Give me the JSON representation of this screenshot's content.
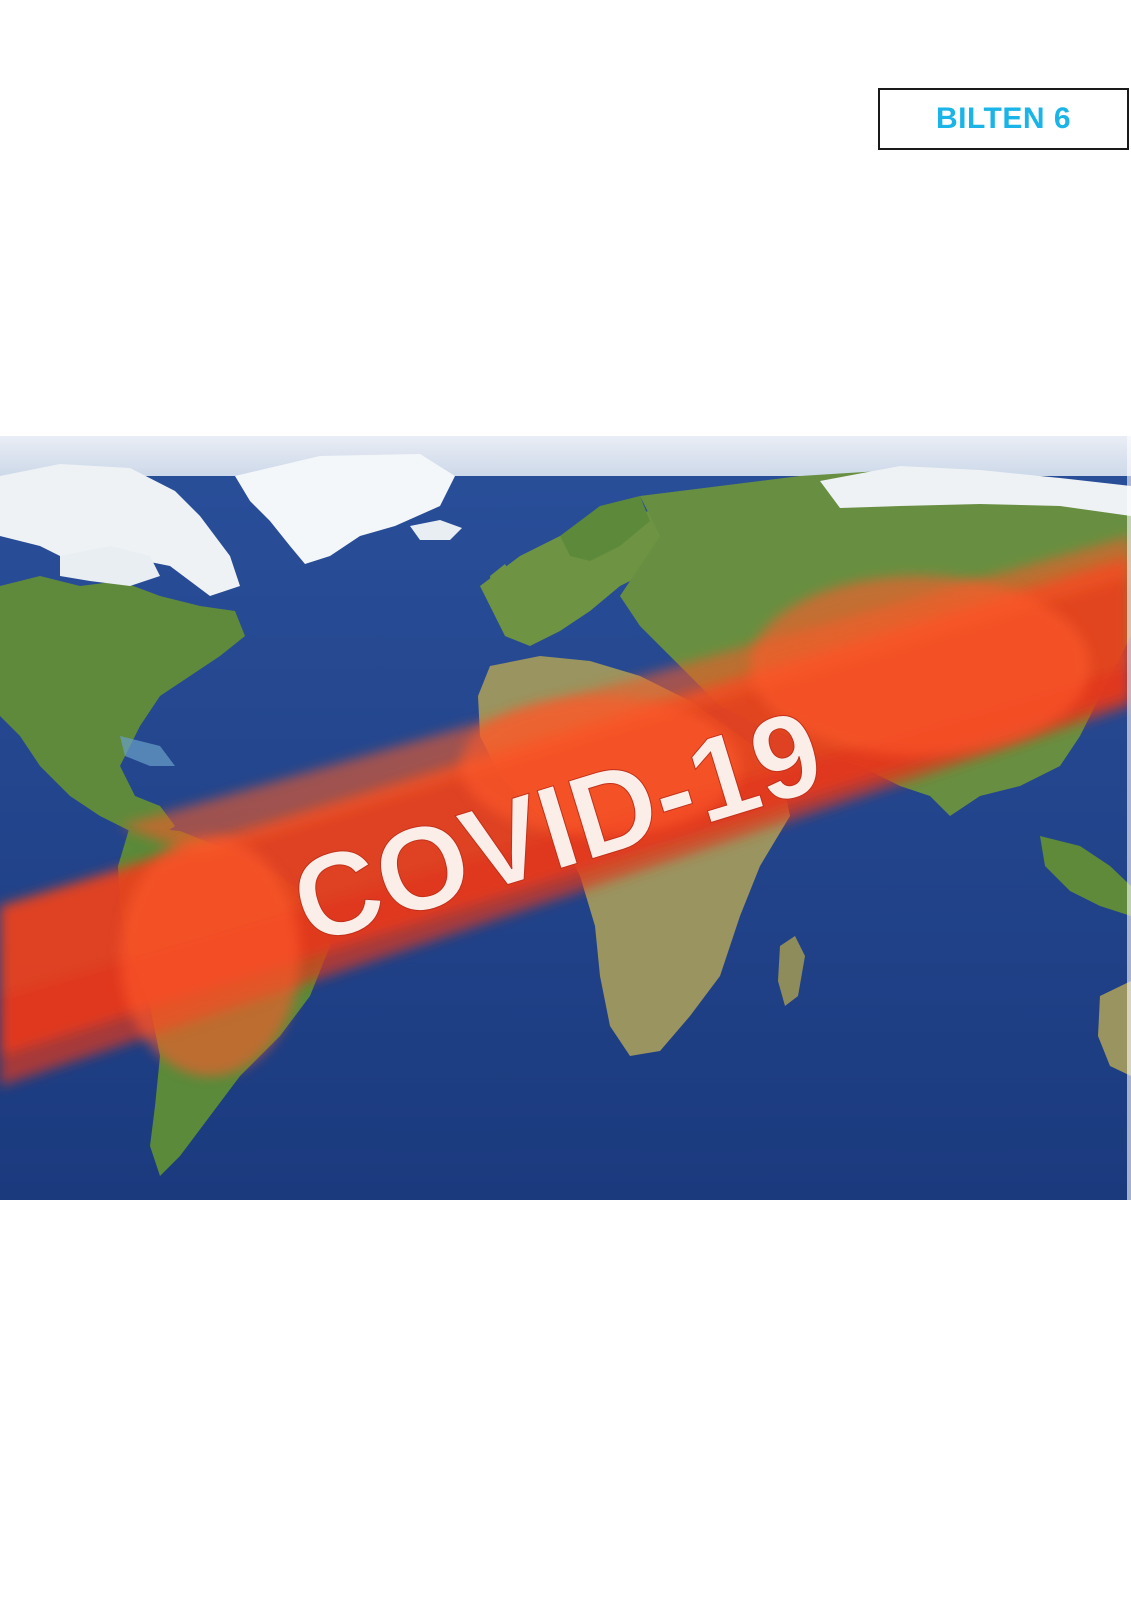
{
  "header": {
    "badge_label": "BILTEN 6",
    "badge_color": "#1ab4e8"
  },
  "cover": {
    "banner_text": "COVID-19",
    "ocean_color": "#1d3f86",
    "banner_color": "#e8401c",
    "land_color": "#6b8a3e",
    "ice_color": "#f3f6f8"
  }
}
